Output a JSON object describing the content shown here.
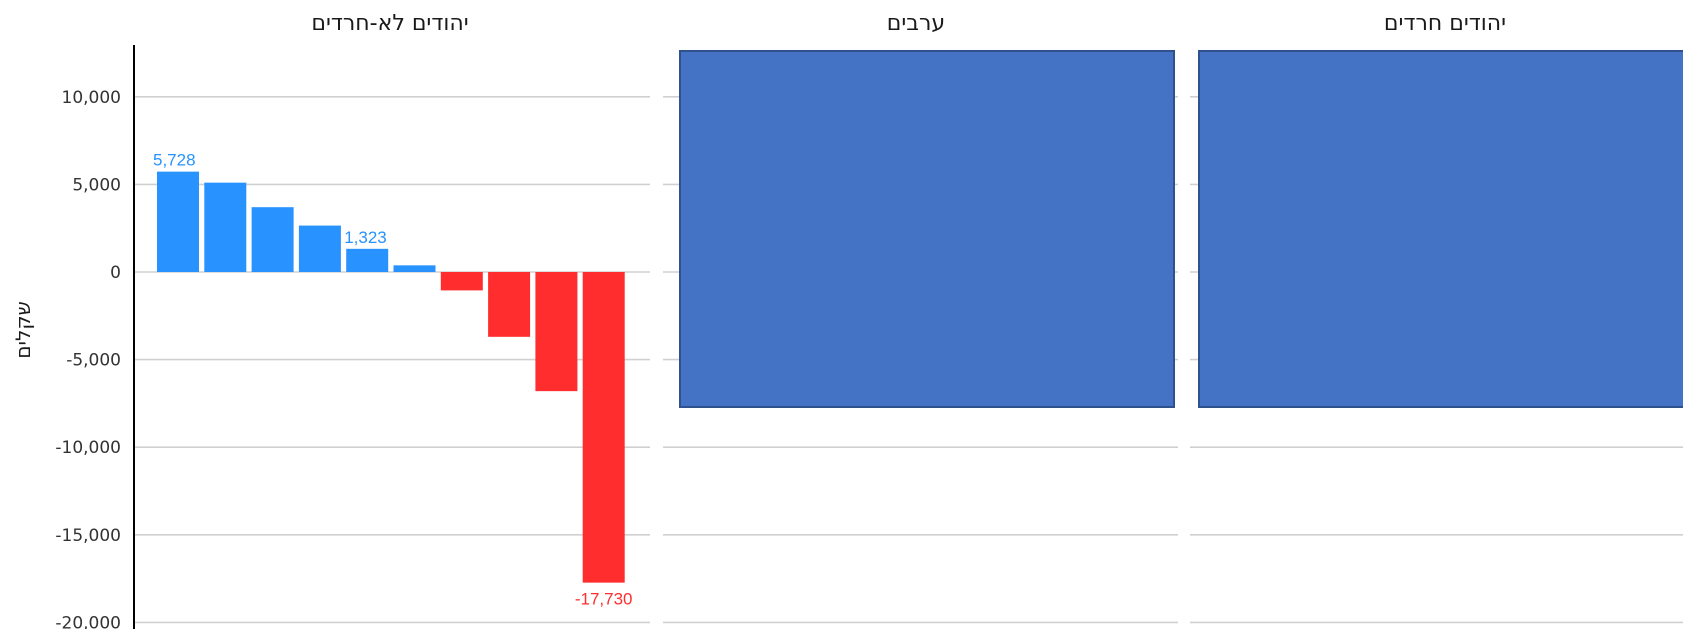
{
  "chart_data": {
    "type": "bar",
    "ylabel": "שקלים",
    "ylim": [
      -20000,
      13000
    ],
    "yticks": [
      10000,
      5000,
      0,
      -5000,
      -10000,
      -15000,
      -20000
    ],
    "ytick_labels": [
      "10,000",
      "5,000",
      "0",
      "-5,000",
      "-10,000",
      "-15,000",
      "-20,000"
    ],
    "grid": true,
    "colors": {
      "positive": "#2893ff",
      "negative": "#ff2d2d",
      "overlay": "#4472c4",
      "overlay_border": "#2f528f"
    },
    "panels": [
      {
        "title": "יהודים לא-חרדים",
        "values": [
          5728,
          5100,
          3700,
          2650,
          1323,
          380,
          -1050,
          -3700,
          -6800,
          -17730
        ],
        "labels": [
          {
            "index": 0,
            "text": "5,728"
          },
          {
            "index": 4,
            "text": "1,323"
          },
          {
            "index": 9,
            "text": "-17,730"
          }
        ]
      },
      {
        "title": "ערבים",
        "values": [],
        "labels": []
      },
      {
        "title": "יהודים חרדים",
        "values": [],
        "labels": []
      }
    ]
  }
}
